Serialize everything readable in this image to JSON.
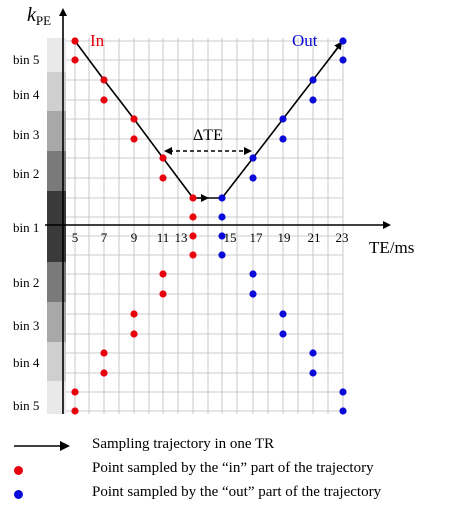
{
  "axis": {
    "y_label_main": "k",
    "y_label_sub": "PE",
    "x_label": "TE/ms",
    "x_ticks": [
      "5",
      "7",
      "9",
      "11",
      "13",
      "15",
      "17",
      "19",
      "21",
      "23"
    ]
  },
  "bins_upper": [
    "bin 5",
    "bin 4",
    "bin 3",
    "bin 2",
    "bin 1"
  ],
  "bins_lower": [
    "bin 2",
    "bin 3",
    "bin 4",
    "bin 5"
  ],
  "labels": {
    "in": "In",
    "out": "Out",
    "delta_te": "ΔTE"
  },
  "legend": [
    {
      "icon": "arrow-icon",
      "text": "Sampling trajectory in one TR"
    },
    {
      "icon": "red-dot-icon",
      "text": "Point sampled by the “in” part of the trajectory"
    },
    {
      "icon": "blue-dot-icon",
      "text": "Point sampled by the “out” part of the trajectory"
    }
  ],
  "colors": {
    "in": "#e8000c",
    "out": "#0a0ad8",
    "trajectory": "#000000",
    "grid": "#bdbdbd"
  },
  "chart_data": {
    "type": "scatter",
    "x_unit": "TE/ms",
    "x_ticks": [
      5,
      7,
      9,
      11,
      13,
      15,
      17,
      19,
      21,
      23
    ],
    "in_points": [
      {
        "te": 5,
        "bin": "5",
        "half": "upper"
      },
      {
        "te": 5,
        "bin": "5",
        "half": "upper"
      },
      {
        "te": 7,
        "bin": "4",
        "half": "upper"
      },
      {
        "te": 7,
        "bin": "4",
        "half": "upper"
      },
      {
        "te": 9,
        "bin": "3",
        "half": "upper"
      },
      {
        "te": 9,
        "bin": "3",
        "half": "upper"
      },
      {
        "te": 11,
        "bin": "2",
        "half": "upper"
      },
      {
        "te": 11,
        "bin": "2",
        "half": "upper"
      },
      {
        "te": 13,
        "bin": "1",
        "half": "upper"
      },
      {
        "te": 13,
        "bin": "1",
        "half": "upper"
      },
      {
        "te": 13,
        "bin": "1",
        "half": "lower"
      },
      {
        "te": 13,
        "bin": "1",
        "half": "lower"
      },
      {
        "te": 11,
        "bin": "2",
        "half": "lower"
      },
      {
        "te": 11,
        "bin": "2",
        "half": "lower"
      },
      {
        "te": 9,
        "bin": "3",
        "half": "lower"
      },
      {
        "te": 9,
        "bin": "3",
        "half": "lower"
      },
      {
        "te": 7,
        "bin": "4",
        "half": "lower"
      },
      {
        "te": 7,
        "bin": "4",
        "half": "lower"
      },
      {
        "te": 5,
        "bin": "5",
        "half": "lower"
      },
      {
        "te": 5,
        "bin": "5",
        "half": "lower"
      }
    ],
    "out_points": [
      {
        "te": 23,
        "bin": "5",
        "half": "upper"
      },
      {
        "te": 23,
        "bin": "5",
        "half": "upper"
      },
      {
        "te": 21,
        "bin": "4",
        "half": "upper"
      },
      {
        "te": 21,
        "bin": "4",
        "half": "upper"
      },
      {
        "te": 19,
        "bin": "3",
        "half": "upper"
      },
      {
        "te": 19,
        "bin": "3",
        "half": "upper"
      },
      {
        "te": 17,
        "bin": "2",
        "half": "upper"
      },
      {
        "te": 17,
        "bin": "2",
        "half": "upper"
      },
      {
        "te": 15,
        "bin": "1",
        "half": "upper"
      },
      {
        "te": 15,
        "bin": "1",
        "half": "upper"
      },
      {
        "te": 15,
        "bin": "1",
        "half": "lower"
      },
      {
        "te": 15,
        "bin": "1",
        "half": "lower"
      },
      {
        "te": 17,
        "bin": "2",
        "half": "lower"
      },
      {
        "te": 17,
        "bin": "2",
        "half": "lower"
      },
      {
        "te": 19,
        "bin": "3",
        "half": "lower"
      },
      {
        "te": 19,
        "bin": "3",
        "half": "lower"
      },
      {
        "te": 21,
        "bin": "4",
        "half": "lower"
      },
      {
        "te": 21,
        "bin": "4",
        "half": "lower"
      },
      {
        "te": 23,
        "bin": "5",
        "half": "lower"
      },
      {
        "te": 23,
        "bin": "5",
        "half": "lower"
      }
    ],
    "trajectory_te": [
      5,
      7,
      9,
      11,
      13,
      15,
      17,
      19,
      21,
      23
    ],
    "delta_te": {
      "from_te": 11,
      "to_te": 17
    }
  }
}
